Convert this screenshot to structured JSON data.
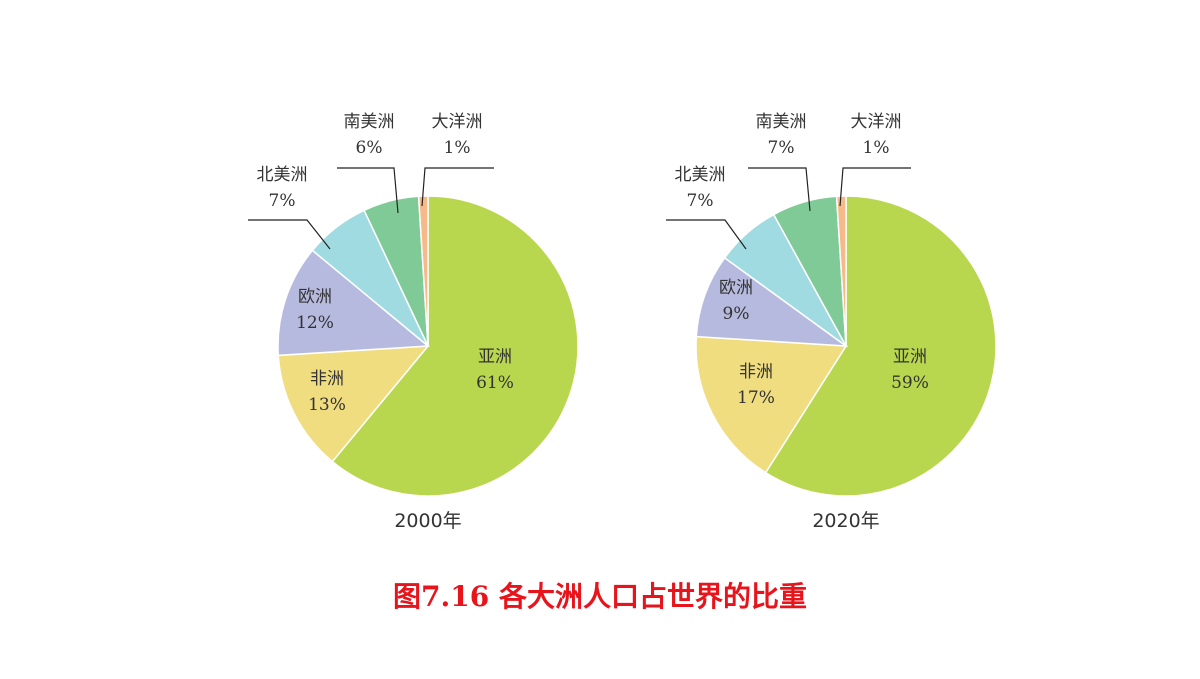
{
  "caption": "图7.16 各大洲人口占世界的比重",
  "colors": {
    "亚洲": "#b9d74e",
    "非洲": "#f0dd80",
    "欧洲": "#b7badf",
    "北美洲": "#9fdbe1",
    "南美洲": "#7fca97",
    "大洋洲": "#f5b98a",
    "caption": "#e8141c"
  },
  "chart_data": [
    {
      "type": "pie",
      "title": "2000年",
      "slices": [
        {
          "name": "亚洲",
          "value": 61,
          "label": "61%"
        },
        {
          "name": "非洲",
          "value": 13,
          "label": "13%"
        },
        {
          "name": "欧洲",
          "value": 12,
          "label": "12%"
        },
        {
          "name": "北美洲",
          "value": 7,
          "label": "7%"
        },
        {
          "name": "南美洲",
          "value": 6,
          "label": "6%"
        },
        {
          "name": "大洋洲",
          "value": 1,
          "label": "1%"
        }
      ]
    },
    {
      "type": "pie",
      "title": "2020年",
      "slices": [
        {
          "name": "亚洲",
          "value": 59,
          "label": "59%"
        },
        {
          "name": "非洲",
          "value": 17,
          "label": "17%"
        },
        {
          "name": "欧洲",
          "value": 9,
          "label": "9%"
        },
        {
          "name": "北美洲",
          "value": 7,
          "label": "7%"
        },
        {
          "name": "南美洲",
          "value": 7,
          "label": "7%"
        },
        {
          "name": "大洋洲",
          "value": 1,
          "label": "1%"
        }
      ]
    }
  ]
}
